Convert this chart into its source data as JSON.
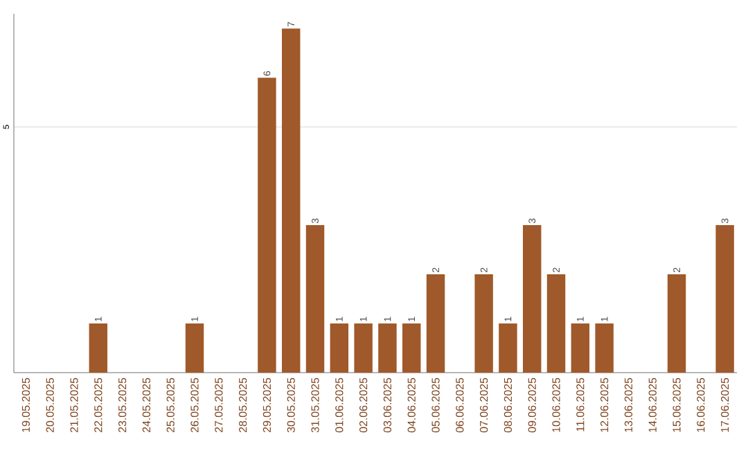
{
  "chart_data": {
    "type": "bar",
    "categories": [
      "19.05.2025",
      "20.05.2025",
      "21.05.2025",
      "22.05.2025",
      "23.05.2025",
      "24.05.2025",
      "25.05.2025",
      "26.05.2025",
      "27.05.2025",
      "28.05.2025",
      "29.05.2025",
      "30.05.2025",
      "31.05.2025",
      "01.06.2025",
      "02.06.2025",
      "03.06.2025",
      "04.06.2025",
      "05.06.2025",
      "06.06.2025",
      "07.06.2025",
      "08.06.2025",
      "09.06.2025",
      "10.06.2025",
      "11.06.2025",
      "12.06.2025",
      "13.06.2025",
      "14.06.2025",
      "15.06.2025",
      "16.06.2025",
      "17.06.2025"
    ],
    "values": [
      0,
      0,
      0,
      1,
      0,
      0,
      0,
      1,
      0,
      0,
      6,
      7,
      3,
      1,
      1,
      1,
      1,
      2,
      0,
      2,
      1,
      3,
      2,
      1,
      1,
      0,
      0,
      2,
      0,
      3
    ],
    "value_labels": [
      null,
      null,
      null,
      "1",
      null,
      null,
      null,
      "1",
      null,
      null,
      "6",
      "7",
      "3",
      "1",
      "1",
      "1",
      "1",
      "2",
      null,
      "2",
      "1",
      "3",
      "2",
      "1",
      "1",
      null,
      null,
      "2",
      null,
      "3"
    ],
    "color": "#a0592a",
    "ylim": [
      0,
      7.3
    ],
    "yticks": [
      5
    ],
    "grid": "y"
  }
}
